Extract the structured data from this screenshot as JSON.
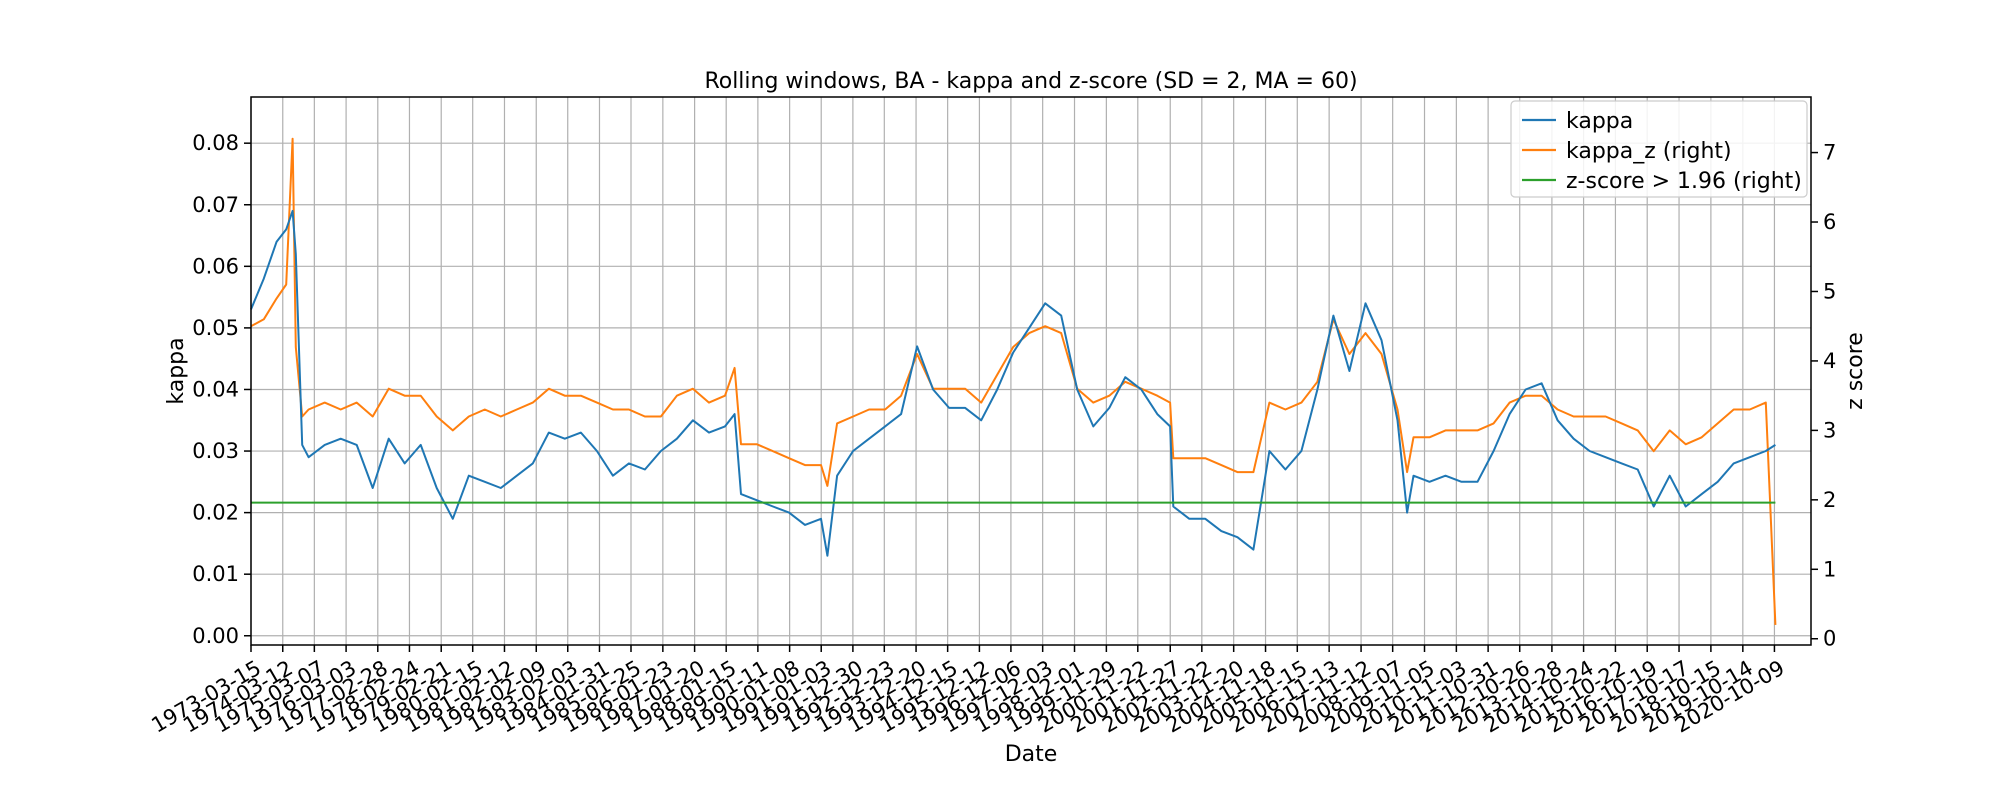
{
  "chart_data": {
    "type": "line",
    "title": "Rolling windows, BA - kappa and z-score (SD = 2, MA = 60)",
    "xlabel": "Date",
    "ylabel": "kappa",
    "ylabel_right": "z score",
    "xlim": [
      "1973-03-15",
      "2021-11-30"
    ],
    "ylim": [
      -0.0015,
      0.0875
    ],
    "ylim_right": [
      -0.09,
      7.8
    ],
    "yticks": [
      0.0,
      0.01,
      0.02,
      0.03,
      0.04,
      0.05,
      0.06,
      0.07,
      0.08
    ],
    "ytick_labels": [
      "0.00",
      "0.01",
      "0.02",
      "0.03",
      "0.04",
      "0.05",
      "0.06",
      "0.07",
      "0.08"
    ],
    "yticks_right": [
      0,
      1,
      2,
      3,
      4,
      5,
      6,
      7
    ],
    "ytick_labels_right": [
      "0",
      "1",
      "2",
      "3",
      "4",
      "5",
      "6",
      "7"
    ],
    "xticks": [
      "1973-03-15",
      "1974-03-12",
      "1975-03-07",
      "1976-03-03",
      "1977-02-28",
      "1978-02-24",
      "1979-02-21",
      "1980-02-15",
      "1981-02-12",
      "1982-02-09",
      "1983-02-03",
      "1984-01-31",
      "1985-01-25",
      "1986-01-23",
      "1987-01-20",
      "1988-01-15",
      "1989-01-11",
      "1990-01-08",
      "1991-01-03",
      "1991-12-30",
      "1992-12-23",
      "1993-12-20",
      "1994-12-15",
      "1995-12-12",
      "1996-12-06",
      "1997-12-03",
      "1998-12-01",
      "1999-11-29",
      "2000-11-22",
      "2001-11-27",
      "2002-11-22",
      "2003-11-20",
      "2004-11-18",
      "2005-11-15",
      "2006-11-13",
      "2007-11-12",
      "2008-11-07",
      "2009-11-05",
      "2010-11-03",
      "2011-10-31",
      "2012-10-26",
      "2013-10-28",
      "2014-10-24",
      "2015-10-22",
      "2016-10-19",
      "2017-10-17",
      "2018-10-15",
      "2019-10-14",
      "2020-10-09"
    ],
    "grid": true,
    "legend_position": "top-right",
    "legend": [
      "kappa",
      "kappa_z (right)",
      "z-score > 1.96 (right)"
    ],
    "series": [
      {
        "name": "kappa",
        "axis": "left",
        "color": "#1f77b4",
        "x": [
          1973.2,
          1973.6,
          1974.0,
          1974.3,
          1974.5,
          1974.6,
          1974.8,
          1975.0,
          1975.5,
          1976.0,
          1976.5,
          1977.0,
          1977.5,
          1978.0,
          1978.5,
          1979.0,
          1979.5,
          1980.0,
          1980.5,
          1981.0,
          1981.5,
          1982.0,
          1982.5,
          1983.0,
          1983.5,
          1984.0,
          1984.5,
          1985.0,
          1985.5,
          1986.0,
          1986.5,
          1987.0,
          1987.5,
          1988.0,
          1988.3,
          1988.5,
          1989.0,
          1989.5,
          1990.0,
          1990.5,
          1991.0,
          1991.2,
          1991.5,
          1992.0,
          1992.5,
          1993.0,
          1993.5,
          1994.0,
          1994.5,
          1995.0,
          1995.5,
          1996.0,
          1996.5,
          1997.0,
          1997.5,
          1998.0,
          1998.5,
          1999.0,
          1999.5,
          2000.0,
          2000.5,
          2001.0,
          2001.5,
          2001.9,
          2002.0,
          2002.5,
          2003.0,
          2003.5,
          2004.0,
          2004.5,
          2005.0,
          2005.5,
          2006.0,
          2006.5,
          2007.0,
          2007.5,
          2008.0,
          2008.5,
          2009.0,
          2009.3,
          2009.5,
          2010.0,
          2010.5,
          2011.0,
          2011.5,
          2012.0,
          2012.5,
          2013.0,
          2013.5,
          2014.0,
          2014.5,
          2015.0,
          2015.5,
          2016.0,
          2016.5,
          2017.0,
          2017.5,
          2018.0,
          2018.5,
          2019.0,
          2019.5,
          2020.0,
          2020.5,
          2020.8
        ],
        "y": [
          0.053,
          0.058,
          0.064,
          0.066,
          0.069,
          0.062,
          0.031,
          0.029,
          0.031,
          0.032,
          0.031,
          0.024,
          0.032,
          0.028,
          0.031,
          0.024,
          0.019,
          0.026,
          0.025,
          0.024,
          0.026,
          0.028,
          0.033,
          0.032,
          0.033,
          0.03,
          0.026,
          0.028,
          0.027,
          0.03,
          0.032,
          0.035,
          0.033,
          0.034,
          0.036,
          0.023,
          0.022,
          0.021,
          0.02,
          0.018,
          0.019,
          0.013,
          0.026,
          0.03,
          0.032,
          0.034,
          0.036,
          0.047,
          0.04,
          0.037,
          0.037,
          0.035,
          0.04,
          0.046,
          0.05,
          0.054,
          0.052,
          0.04,
          0.034,
          0.037,
          0.042,
          0.04,
          0.036,
          0.034,
          0.021,
          0.019,
          0.019,
          0.017,
          0.016,
          0.014,
          0.03,
          0.027,
          0.03,
          0.04,
          0.052,
          0.043,
          0.054,
          0.048,
          0.035,
          0.02,
          0.026,
          0.025,
          0.026,
          0.025,
          0.025,
          0.03,
          0.036,
          0.04,
          0.041,
          0.035,
          0.032,
          0.03,
          0.029,
          0.028,
          0.027,
          0.021,
          0.026,
          0.021,
          0.023,
          0.025,
          0.028,
          0.029,
          0.03,
          0.031
        ]
      },
      {
        "name": "kappa_z (right)",
        "axis": "right",
        "color": "#ff7f0e",
        "x": [
          1973.2,
          1973.6,
          1974.0,
          1974.3,
          1974.5,
          1974.6,
          1974.8,
          1975.0,
          1975.5,
          1976.0,
          1976.5,
          1977.0,
          1977.5,
          1978.0,
          1978.5,
          1979.0,
          1979.5,
          1980.0,
          1980.5,
          1981.0,
          1981.5,
          1982.0,
          1982.5,
          1983.0,
          1983.5,
          1984.0,
          1984.5,
          1985.0,
          1985.5,
          1986.0,
          1986.5,
          1987.0,
          1987.5,
          1988.0,
          1988.3,
          1988.5,
          1989.0,
          1989.5,
          1990.0,
          1990.5,
          1991.0,
          1991.2,
          1991.5,
          1992.0,
          1992.5,
          1993.0,
          1993.5,
          1994.0,
          1994.5,
          1995.0,
          1995.5,
          1996.0,
          1996.5,
          1997.0,
          1997.5,
          1998.0,
          1998.5,
          1999.0,
          1999.5,
          2000.0,
          2000.5,
          2001.0,
          2001.5,
          2001.9,
          2002.0,
          2002.5,
          2003.0,
          2003.5,
          2004.0,
          2004.5,
          2005.0,
          2005.5,
          2006.0,
          2006.5,
          2007.0,
          2007.5,
          2008.0,
          2008.5,
          2009.0,
          2009.3,
          2009.5,
          2010.0,
          2010.5,
          2011.0,
          2011.5,
          2012.0,
          2012.5,
          2013.0,
          2013.5,
          2014.0,
          2014.5,
          2015.0,
          2015.5,
          2016.0,
          2016.5,
          2017.0,
          2017.5,
          2018.0,
          2018.5,
          2019.0,
          2019.5,
          2020.0,
          2020.5,
          2020.8
        ],
        "y": [
          4.5,
          4.6,
          4.9,
          5.1,
          7.2,
          4.2,
          3.2,
          3.3,
          3.4,
          3.3,
          3.4,
          3.2,
          3.6,
          3.5,
          3.5,
          3.2,
          3.0,
          3.2,
          3.3,
          3.2,
          3.3,
          3.4,
          3.6,
          3.5,
          3.5,
          3.4,
          3.3,
          3.3,
          3.2,
          3.2,
          3.5,
          3.6,
          3.4,
          3.5,
          3.9,
          2.8,
          2.8,
          2.7,
          2.6,
          2.5,
          2.5,
          2.2,
          3.1,
          3.2,
          3.3,
          3.3,
          3.5,
          4.1,
          3.6,
          3.6,
          3.6,
          3.4,
          3.8,
          4.2,
          4.4,
          4.5,
          4.4,
          3.6,
          3.4,
          3.5,
          3.7,
          3.6,
          3.5,
          3.4,
          2.6,
          2.6,
          2.6,
          2.5,
          2.4,
          2.4,
          3.4,
          3.3,
          3.4,
          3.7,
          4.6,
          4.1,
          4.4,
          4.1,
          3.3,
          2.4,
          2.9,
          2.9,
          3.0,
          3.0,
          3.0,
          3.1,
          3.4,
          3.5,
          3.5,
          3.3,
          3.2,
          3.2,
          3.2,
          3.1,
          3.0,
          2.7,
          3.0,
          2.8,
          2.9,
          3.1,
          3.3,
          3.3,
          3.4,
          0.2
        ]
      },
      {
        "name": "z-score > 1.96 (right)",
        "axis": "right",
        "color": "#2ca02c",
        "x": [
          1973.2,
          2020.8
        ],
        "y": [
          1.96,
          1.96
        ]
      }
    ]
  }
}
